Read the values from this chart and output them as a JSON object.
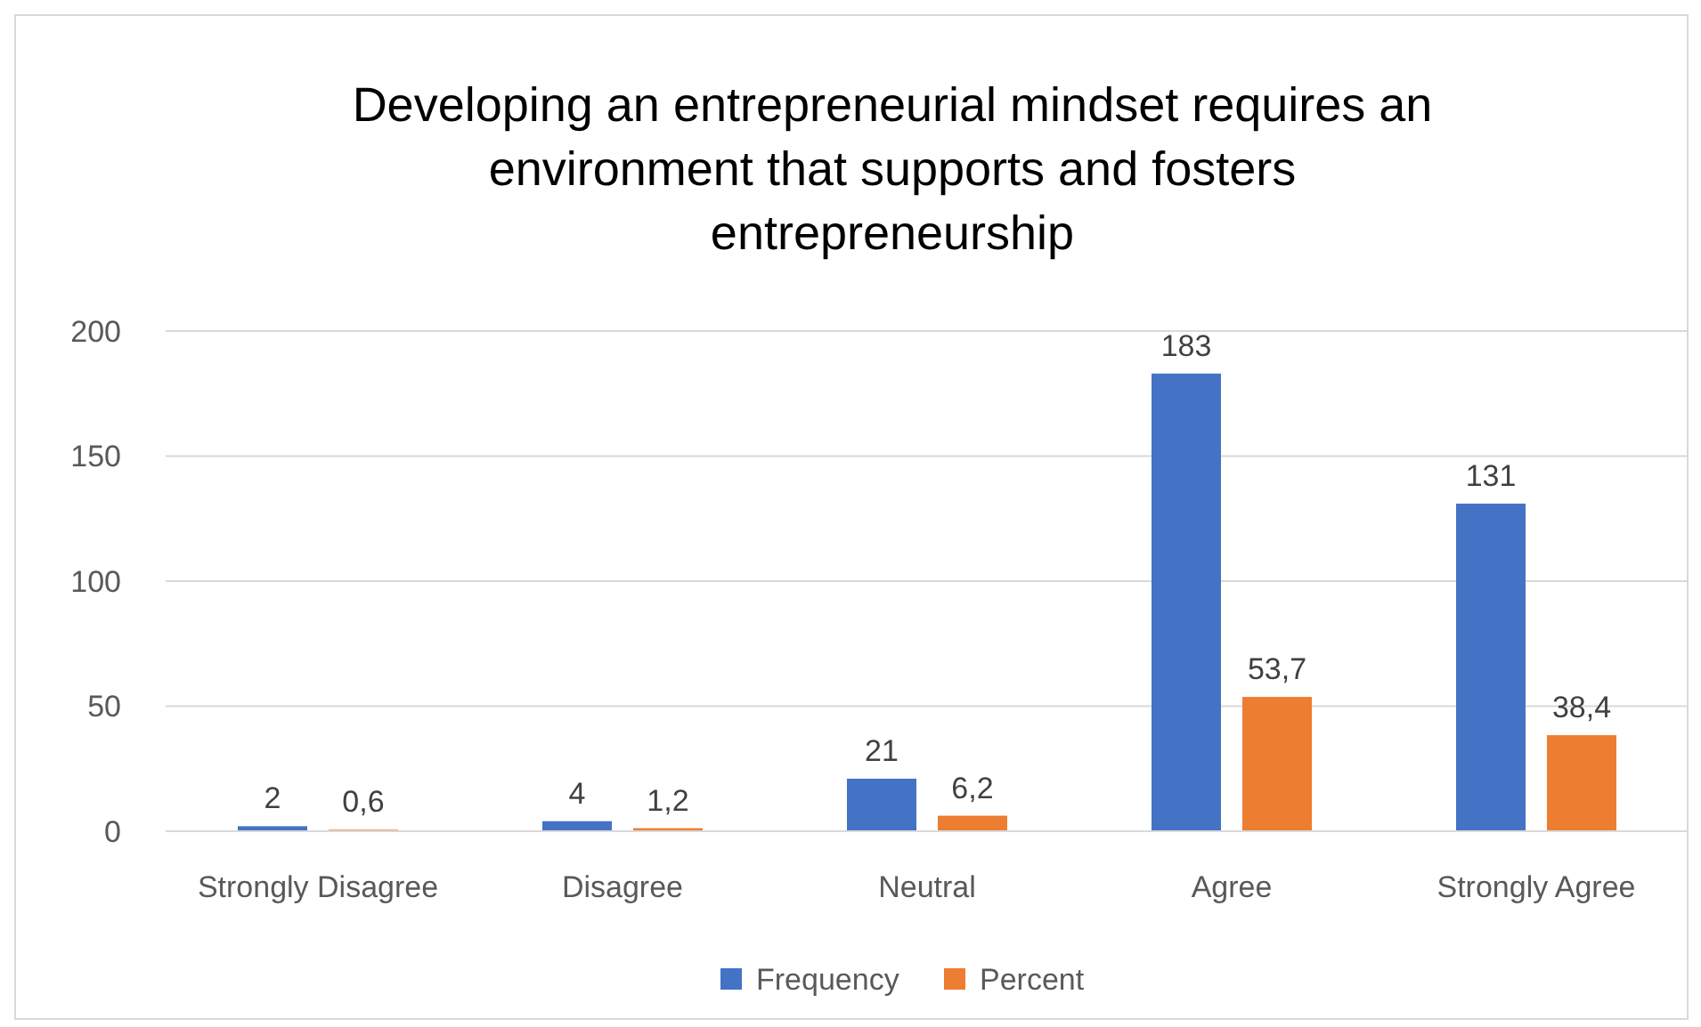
{
  "chart_data": {
    "type": "bar",
    "title": "Developing an entrepreneurial mindset requires an environment that supports and fosters entrepreneurship",
    "categories": [
      "Strongly Disagree",
      "Disagree",
      "Neutral",
      "Agree",
      "Strongly Agree"
    ],
    "series": [
      {
        "name": "Frequency",
        "color": "#4472c4",
        "values": [
          2,
          4,
          21,
          183,
          131
        ],
        "value_labels": [
          "2",
          "4",
          "21",
          "183",
          "131"
        ]
      },
      {
        "name": "Percent",
        "color": "#ed7d31",
        "values": [
          0.6,
          1.2,
          6.2,
          53.7,
          38.4
        ],
        "value_labels": [
          "0,6",
          "1,2",
          "6,2",
          "53,7",
          "38,4"
        ]
      }
    ],
    "ylim": [
      0,
      200
    ],
    "yticks": [
      0,
      50,
      100,
      150,
      200
    ],
    "grid": "y",
    "legend": "bottom"
  }
}
